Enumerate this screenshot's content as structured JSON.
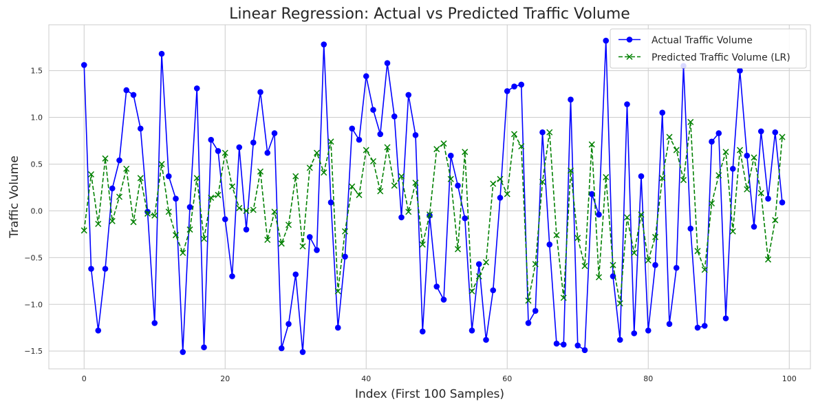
{
  "chart_data": {
    "type": "line",
    "title": "Linear Regression: Actual vs Predicted Traffic Volume",
    "xlabel": "Index (First 100 Samples)",
    "ylabel": "Traffic Volume",
    "xlim": [
      -5,
      103
    ],
    "ylim": [
      -1.69,
      1.99
    ],
    "xticks": [
      0,
      20,
      40,
      60,
      80,
      100
    ],
    "xtick_labels": [
      "0",
      "20",
      "40",
      "60",
      "80",
      "100"
    ],
    "yticks": [
      -1.5,
      -1.0,
      -0.5,
      0.0,
      0.5,
      1.0,
      1.5
    ],
    "ytick_labels": [
      "−1.5",
      "−1.0",
      "−0.5",
      "0.0",
      "0.5",
      "1.0",
      "1.5"
    ],
    "grid": true,
    "legend_position": "top-right",
    "series": [
      {
        "name": "Actual Traffic Volume",
        "color": "#0000ff",
        "linestyle": "solid",
        "marker": "circle",
        "values": [
          1.56,
          -0.62,
          -1.28,
          -0.62,
          0.24,
          0.54,
          1.29,
          1.24,
          0.88,
          -0.01,
          -1.2,
          1.68,
          0.37,
          0.13,
          -1.51,
          0.04,
          1.31,
          -1.46,
          0.76,
          0.64,
          -0.09,
          -0.7,
          0.68,
          -0.2,
          0.73,
          1.27,
          0.62,
          0.83,
          -1.47,
          -1.21,
          -0.68,
          -1.51,
          -0.28,
          -0.42,
          1.78,
          0.09,
          -1.25,
          -0.49,
          0.88,
          0.76,
          1.44,
          1.08,
          0.82,
          1.58,
          1.01,
          -0.07,
          1.24,
          0.81,
          -1.29,
          -0.05,
          -0.81,
          -0.95,
          0.59,
          0.27,
          -0.08,
          -1.28,
          -0.57,
          -1.38,
          -0.85,
          0.14,
          1.28,
          1.33,
          1.35,
          -1.2,
          -1.07,
          0.84,
          -0.36,
          -1.42,
          -1.43,
          1.19,
          -1.44,
          -1.49,
          0.18,
          -0.04,
          1.82,
          -0.7,
          -1.38,
          1.14,
          -1.31,
          0.37,
          -1.28,
          -0.58,
          1.05,
          -1.21,
          -0.61,
          1.55,
          -0.19,
          -1.25,
          -1.23,
          0.74,
          0.83,
          -1.15,
          0.45,
          1.5,
          0.59,
          -0.17,
          0.85,
          0.13,
          0.84,
          0.09
        ]
      },
      {
        "name": "Predicted Traffic Volume (LR)",
        "color": "#008000",
        "linestyle": "dashed",
        "marker": "x",
        "values": [
          -0.21,
          0.39,
          -0.14,
          0.56,
          -0.11,
          0.15,
          0.45,
          -0.12,
          0.35,
          -0.03,
          -0.05,
          0.5,
          -0.01,
          -0.26,
          -0.45,
          -0.2,
          0.35,
          -0.3,
          0.14,
          0.17,
          0.62,
          0.26,
          0.03,
          -0.0,
          0.01,
          0.42,
          -0.31,
          -0.01,
          -0.35,
          -0.15,
          0.37,
          -0.38,
          0.46,
          0.62,
          0.41,
          0.74,
          -0.86,
          -0.22,
          0.26,
          0.17,
          0.65,
          0.53,
          0.21,
          0.68,
          0.27,
          0.37,
          -0.01,
          0.3,
          -0.36,
          -0.04,
          0.66,
          0.72,
          0.34,
          -0.41,
          0.63,
          -0.86,
          -0.7,
          -0.55,
          0.29,
          0.34,
          0.18,
          0.82,
          0.69,
          -0.96,
          -0.57,
          0.31,
          0.84,
          -0.26,
          -0.93,
          0.43,
          -0.29,
          -0.59,
          0.71,
          -0.71,
          0.36,
          -0.58,
          -0.99,
          -0.07,
          -0.45,
          -0.04,
          -0.53,
          -0.28,
          0.35,
          0.79,
          0.65,
          0.33,
          0.95,
          -0.43,
          -0.63,
          0.08,
          0.38,
          0.63,
          -0.22,
          0.65,
          0.23,
          0.57,
          0.19,
          -0.52,
          -0.1,
          0.79
        ]
      }
    ]
  }
}
